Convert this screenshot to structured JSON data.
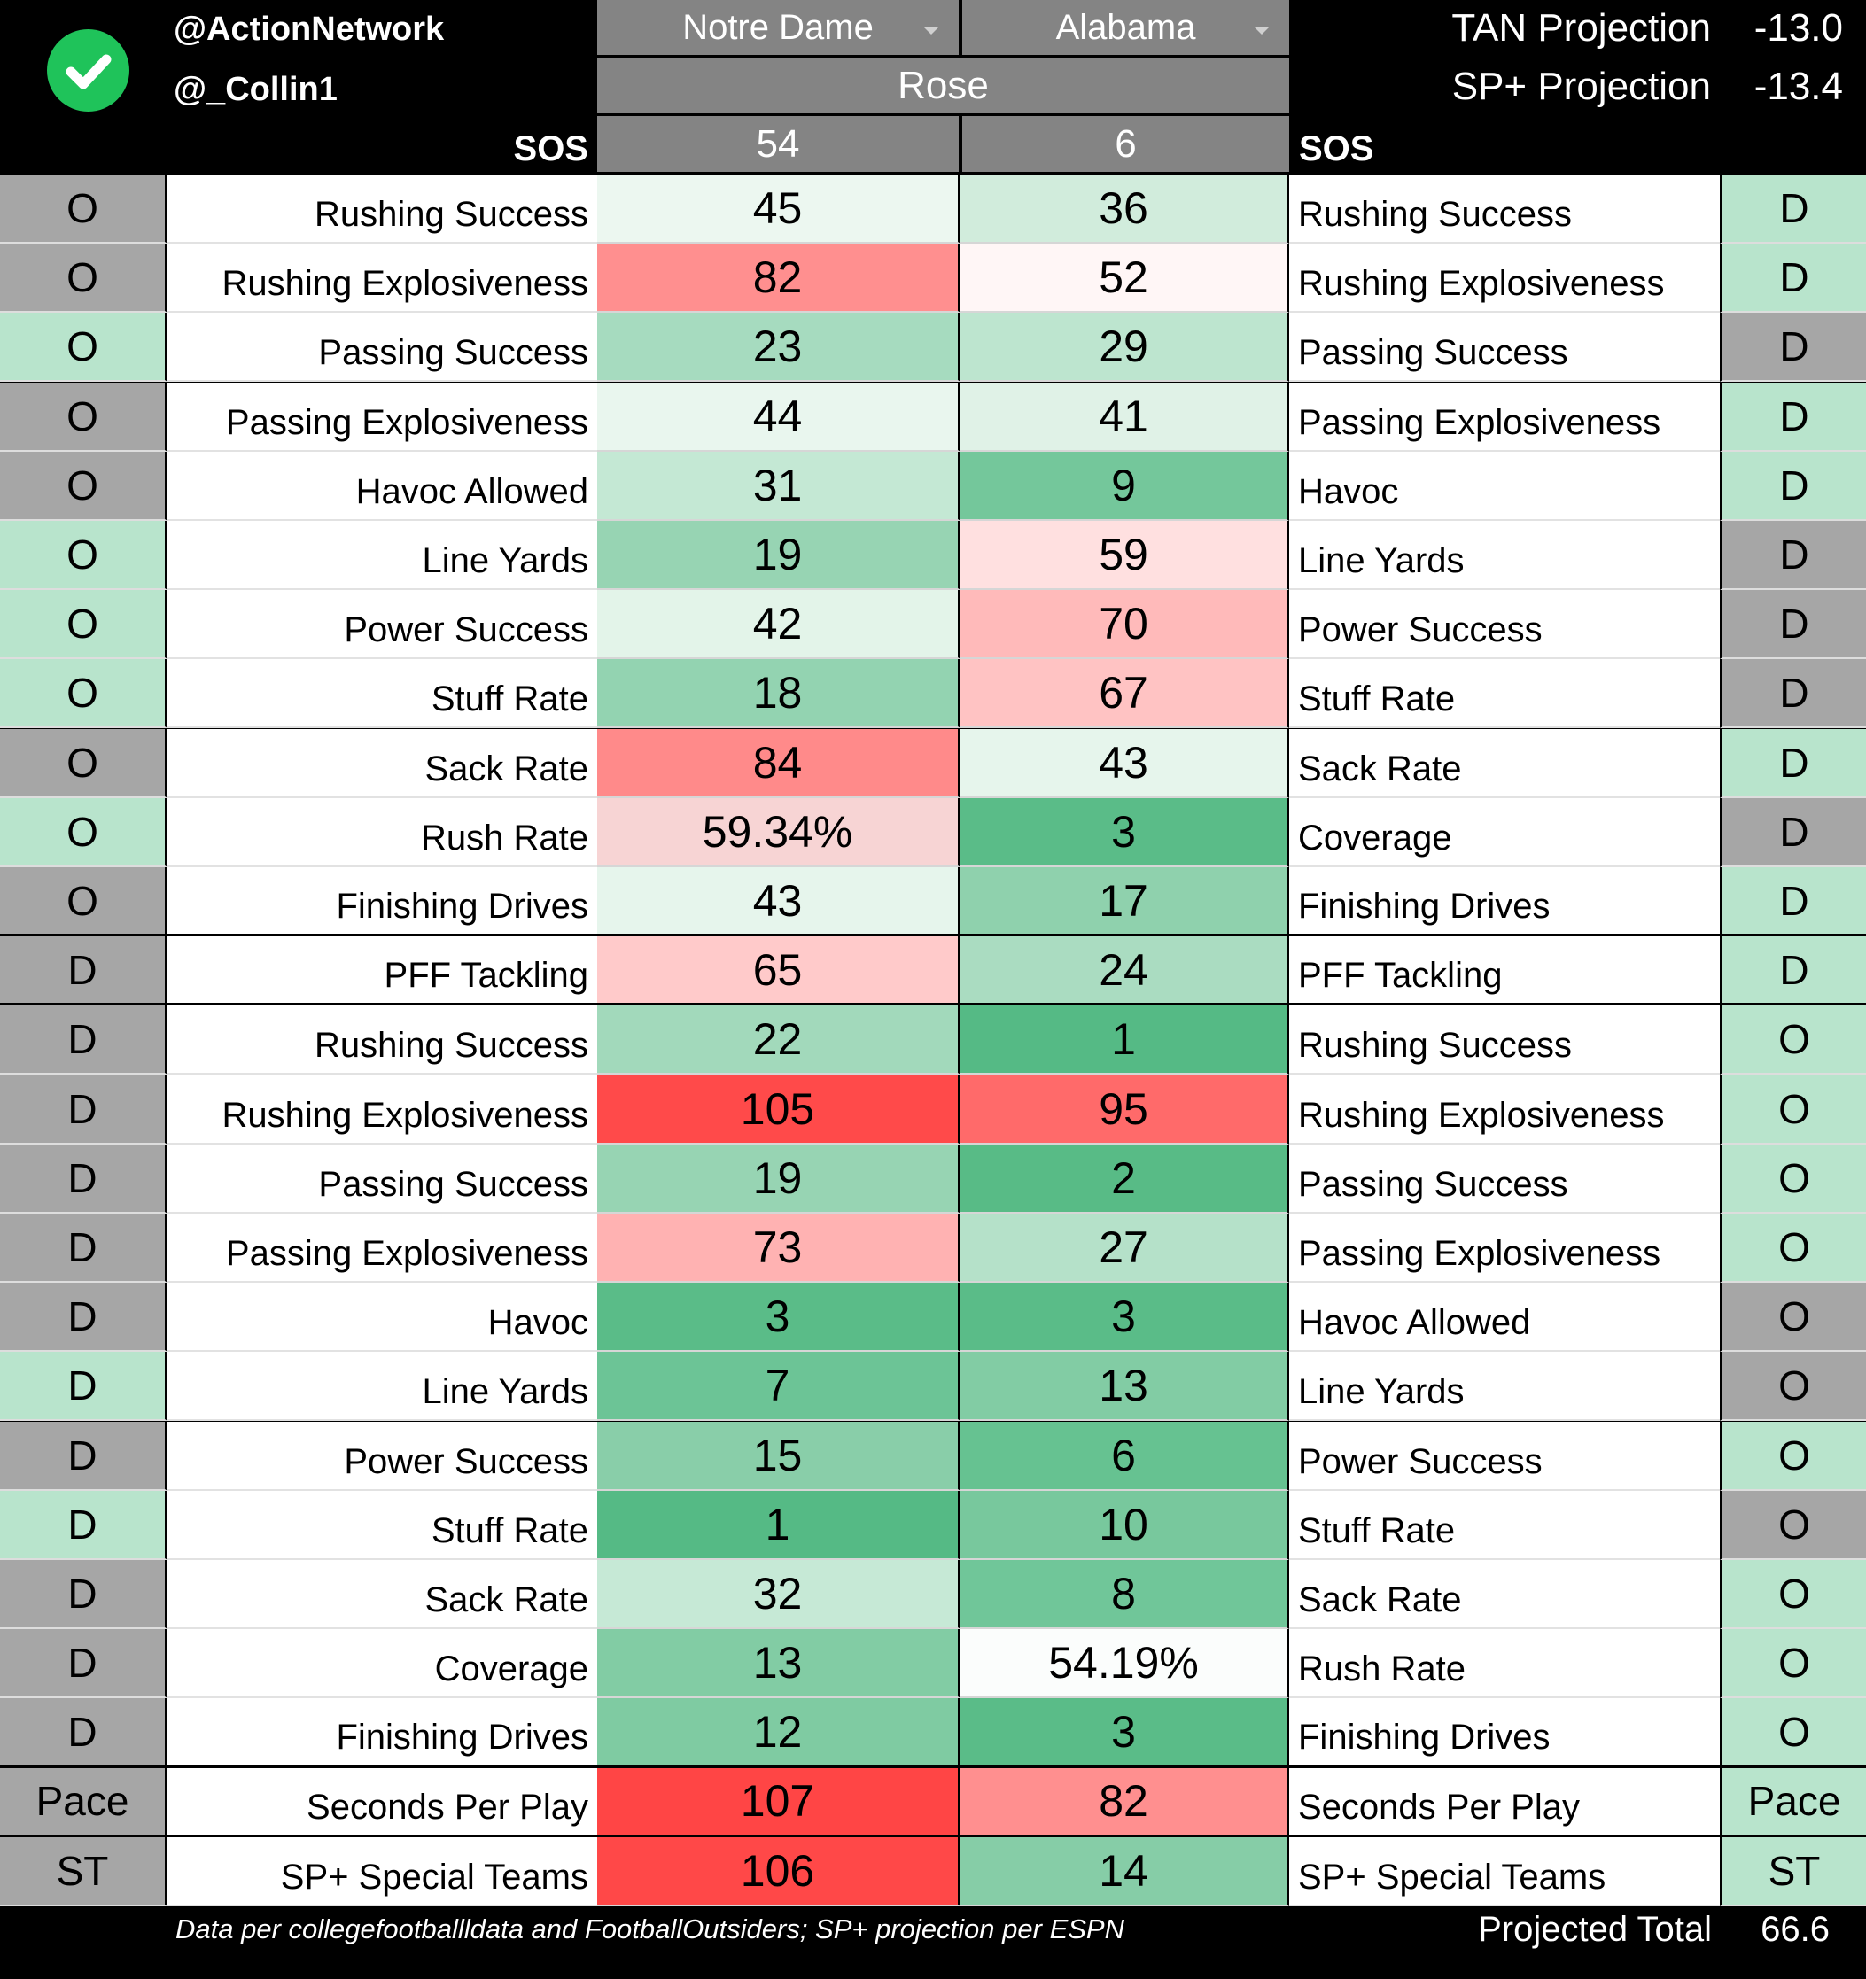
{
  "header": {
    "handle1": "@ActionNetwork",
    "handle2": "@_Collin1",
    "team_left": "Notre Dame",
    "team_right": "Alabama",
    "bowl": "Rose",
    "sos_label_left": "SOS",
    "sos_label_right": "SOS",
    "sos_left": "54",
    "sos_right": "6",
    "tan_label": "TAN Projection",
    "tan_value": "-13.0",
    "sp_label": "SP+ Projection",
    "sp_value": "-13.4"
  },
  "colors": {
    "side_gray": "#a6a6a6",
    "side_green": "#b8e4cc",
    "check_green": "#1fc35a",
    "header_gray": "#848484"
  },
  "rows": [
    {
      "left_side": "O",
      "left_side_color": "#a6a6a6",
      "left_stat": "Rushing Success",
      "left_value": "45",
      "left_color": "#ecf7f0",
      "right_value": "36",
      "right_color": "#d1ecdc",
      "right_stat": "Rushing Success",
      "right_side": "D",
      "right_side_color": "#b8e4cc"
    },
    {
      "left_side": "O",
      "left_side_color": "#a6a6a6",
      "left_stat": "Rushing Explosiveness",
      "left_value": "82",
      "left_color": "#ff8f8f",
      "right_value": "52",
      "right_color": "#fff6f6",
      "right_stat": "Rushing Explosiveness",
      "right_side": "D",
      "right_side_color": "#b8e4cc"
    },
    {
      "left_side": "O",
      "left_side_color": "#b8e4cc",
      "left_stat": "Passing Success",
      "left_value": "23",
      "left_color": "#a6dbbf",
      "right_value": "29",
      "right_color": "#bde5cf",
      "right_stat": "Passing Success",
      "right_side": "D",
      "right_side_color": "#a6a6a6"
    },
    {
      "left_side": "O",
      "left_side_color": "#a6a6a6",
      "left_stat": "Passing Explosiveness",
      "left_value": "44",
      "left_color": "#e9f6ee",
      "right_value": "41",
      "right_color": "#e0f2e7",
      "right_stat": "Passing Explosiveness",
      "right_side": "D",
      "right_side_color": "#b8e4cc"
    },
    {
      "left_side": "O",
      "left_side_color": "#a6a6a6",
      "left_stat": "Havoc Allowed",
      "left_value": "31",
      "left_color": "#c4e8d4",
      "right_value": "9",
      "right_color": "#74c79b",
      "right_stat": "Havoc",
      "right_side": "D",
      "right_side_color": "#b8e4cc"
    },
    {
      "left_side": "O",
      "left_side_color": "#b8e4cc",
      "left_stat": "Line Yards",
      "left_value": "19",
      "left_color": "#97d4b3",
      "right_value": "59",
      "right_color": "#ffe0e0",
      "right_stat": "Line Yards",
      "right_side": "D",
      "right_side_color": "#a6a6a6"
    },
    {
      "left_side": "O",
      "left_side_color": "#b8e4cc",
      "left_stat": "Power Success",
      "left_value": "42",
      "left_color": "#e3f4e9",
      "right_value": "70",
      "right_color": "#ffbaba",
      "right_stat": "Power Success",
      "right_side": "D",
      "right_side_color": "#a6a6a6"
    },
    {
      "left_side": "O",
      "left_side_color": "#b8e4cc",
      "left_stat": "Stuff Rate",
      "left_value": "18",
      "left_color": "#93d3b1",
      "right_value": "67",
      "right_color": "#ffc3c3",
      "right_stat": "Stuff Rate",
      "right_side": "D",
      "right_side_color": "#a6a6a6"
    },
    {
      "left_side": "O",
      "left_side_color": "#a6a6a6",
      "left_stat": "Sack Rate",
      "left_value": "84",
      "left_color": "#ff8a8a",
      "right_value": "43",
      "right_color": "#e6f5ec",
      "right_stat": "Sack Rate",
      "right_side": "D",
      "right_side_color": "#b8e4cc"
    },
    {
      "left_side": "O",
      "left_side_color": "#b8e4cc",
      "left_stat": "Rush Rate",
      "left_value": "59.34%",
      "left_color": "#f7d4d4",
      "right_value": "3",
      "right_color": "#5abc88",
      "right_stat": "Coverage",
      "right_side": "D",
      "right_side_color": "#a6a6a6"
    },
    {
      "left_side": "O",
      "left_side_color": "#a6a6a6",
      "left_stat": "Finishing Drives",
      "left_value": "43",
      "left_color": "#e6f5ec",
      "right_value": "17",
      "right_color": "#8fd1ad",
      "right_stat": "Finishing Drives",
      "right_side": "D",
      "right_side_color": "#b8e4cc"
    },
    {
      "left_side": "D",
      "left_side_color": "#a6a6a6",
      "left_stat": "PFF Tackling",
      "left_value": "65",
      "left_color": "#ffcaca",
      "right_value": "24",
      "right_color": "#aadcc1",
      "right_stat": "PFF Tackling",
      "right_side": "D",
      "right_side_color": "#b8e4cc"
    },
    {
      "left_side": "D",
      "left_side_color": "#a6a6a6",
      "left_stat": "Rushing Success",
      "left_value": "22",
      "left_color": "#a2d9bb",
      "right_value": "1",
      "right_color": "#55ba85",
      "right_stat": "Rushing Success",
      "right_side": "O",
      "right_side_color": "#b8e4cc"
    },
    {
      "left_side": "D",
      "left_side_color": "#a6a6a6",
      "left_stat": "Rushing Explosiveness",
      "left_value": "105",
      "left_color": "#ff4a4a",
      "right_value": "95",
      "right_color": "#ff6a6a",
      "right_stat": "Rushing Explosiveness",
      "right_side": "O",
      "right_side_color": "#b8e4cc"
    },
    {
      "left_side": "D",
      "left_side_color": "#a6a6a6",
      "left_stat": "Passing Success",
      "left_value": "19",
      "left_color": "#97d4b3",
      "right_value": "2",
      "right_color": "#58bb86",
      "right_stat": "Passing Success",
      "right_side": "O",
      "right_side_color": "#b8e4cc"
    },
    {
      "left_side": "D",
      "left_side_color": "#a6a6a6",
      "left_stat": "Passing Explosiveness",
      "left_value": "73",
      "left_color": "#ffb2b2",
      "right_value": "27",
      "right_color": "#b5e1c9",
      "right_stat": "Passing Explosiveness",
      "right_side": "O",
      "right_side_color": "#b8e4cc"
    },
    {
      "left_side": "D",
      "left_side_color": "#a6a6a6",
      "left_stat": "Havoc",
      "left_value": "3",
      "left_color": "#5abc88",
      "right_value": "3",
      "right_color": "#5abc88",
      "right_stat": "Havoc Allowed",
      "right_side": "O",
      "right_side_color": "#a6a6a6"
    },
    {
      "left_side": "D",
      "left_side_color": "#b8e4cc",
      "left_stat": "Line Yards",
      "left_value": "7",
      "left_color": "#6cc496",
      "right_value": "13",
      "right_color": "#82cca4",
      "right_stat": "Line Yards",
      "right_side": "O",
      "right_side_color": "#a6a6a6"
    },
    {
      "left_side": "D",
      "left_side_color": "#a6a6a6",
      "left_stat": "Power Success",
      "left_value": "15",
      "left_color": "#89cea9",
      "right_value": "6",
      "right_color": "#66c291",
      "right_stat": "Power Success",
      "right_side": "O",
      "right_side_color": "#b8e4cc"
    },
    {
      "left_side": "D",
      "left_side_color": "#b8e4cc",
      "left_stat": "Stuff Rate",
      "left_value": "1",
      "left_color": "#55ba85",
      "right_value": "10",
      "right_color": "#78c89d",
      "right_stat": "Stuff Rate",
      "right_side": "O",
      "right_side_color": "#a6a6a6"
    },
    {
      "left_side": "D",
      "left_side_color": "#a6a6a6",
      "left_stat": "Sack Rate",
      "left_value": "32",
      "left_color": "#c6e9d6",
      "right_value": "8",
      "right_color": "#70c699",
      "right_stat": "Sack Rate",
      "right_side": "O",
      "right_side_color": "#b8e4cc"
    },
    {
      "left_side": "D",
      "left_side_color": "#a6a6a6",
      "left_stat": "Coverage",
      "left_value": "13",
      "left_color": "#82cca4",
      "right_value": "54.19%",
      "right_color": "#fbfdfc",
      "right_stat": "Rush Rate",
      "right_side": "O",
      "right_side_color": "#b8e4cc"
    },
    {
      "left_side": "D",
      "left_side_color": "#a6a6a6",
      "left_stat": "Finishing Drives",
      "left_value": "12",
      "left_color": "#7fcba2",
      "right_value": "3",
      "right_color": "#5abc88",
      "right_stat": "Finishing Drives",
      "right_side": "O",
      "right_side_color": "#b8e4cc"
    },
    {
      "left_side": "Pace",
      "left_side_color": "#a6a6a6",
      "left_stat": "Seconds Per Play",
      "left_value": "107",
      "left_color": "#ff4545",
      "right_value": "82",
      "right_color": "#ff8f8f",
      "right_stat": "Seconds Per Play",
      "right_side": "Pace",
      "right_side_color": "#b8e4cc"
    },
    {
      "left_side": "ST",
      "left_side_color": "#a6a6a6",
      "left_stat": "SP+ Special Teams",
      "left_value": "106",
      "left_color": "#ff4848",
      "right_value": "14",
      "right_color": "#86cda7",
      "right_stat": "SP+ Special Teams",
      "right_side": "ST",
      "right_side_color": "#b8e4cc"
    }
  ],
  "footer": {
    "note": "Data per collegefootballldata and FootballOutsiders; SP+ projection per ESPN",
    "total_label": "Projected Total",
    "total_value": "66.6"
  }
}
